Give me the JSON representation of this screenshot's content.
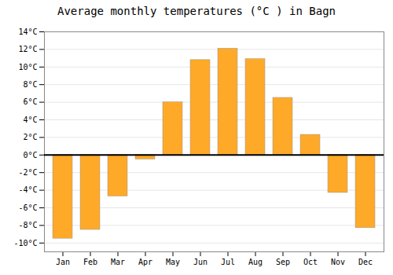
{
  "chart_data": {
    "type": "bar",
    "title": "Average monthly temperatures (°C ) in Bagn",
    "categories": [
      "Jan",
      "Feb",
      "Mar",
      "Apr",
      "May",
      "Jun",
      "Jul",
      "Aug",
      "Sep",
      "Oct",
      "Nov",
      "Dec"
    ],
    "values": [
      -9.5,
      -8.5,
      -4.7,
      -0.5,
      6.0,
      10.8,
      12.1,
      10.9,
      6.5,
      2.3,
      -4.3,
      -8.3
    ],
    "color": "#FFA928",
    "ylim": [
      -11,
      14
    ],
    "yticks": [
      {
        "value": -10,
        "label": "-10°C"
      },
      {
        "value": -8,
        "label": "-8°C"
      },
      {
        "value": -6,
        "label": "-6°C"
      },
      {
        "value": -4,
        "label": "-4°C"
      },
      {
        "value": -2,
        "label": "-2°C"
      },
      {
        "value": 0,
        "label": "0°C"
      },
      {
        "value": 2,
        "label": "2°C"
      },
      {
        "value": 4,
        "label": "4°C"
      },
      {
        "value": 6,
        "label": "6°C"
      },
      {
        "value": 8,
        "label": "8°C"
      },
      {
        "value": 10,
        "label": "10°C"
      },
      {
        "value": 12,
        "label": "12°C"
      },
      {
        "value": 14,
        "label": "14°C"
      }
    ],
    "grid": true
  }
}
